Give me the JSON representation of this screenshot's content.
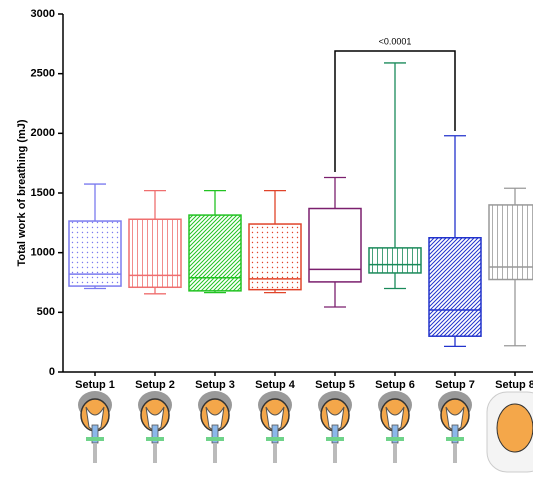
{
  "chart_data": {
    "type": "box",
    "y_label": "Total work of breathing (mJ)",
    "categories": [
      "Setup 1",
      "Setup 2",
      "Setup 3",
      "Setup 4",
      "Setup 5",
      "Setup 6",
      "Setup 7",
      "Setup 8"
    ],
    "min": [
      700,
      655,
      665,
      665,
      545,
      700,
      215,
      220
    ],
    "q1": [
      720,
      710,
      680,
      690,
      755,
      830,
      300,
      775
    ],
    "median": [
      820,
      810,
      790,
      780,
      860,
      900,
      520,
      880
    ],
    "q3": [
      1265,
      1280,
      1315,
      1240,
      1370,
      1040,
      1125,
      1400
    ],
    "max": [
      1575,
      1520,
      1520,
      1520,
      1630,
      2590,
      1980,
      1540
    ],
    "colors": [
      "#7b7bef",
      "#ef6f6f",
      "#22c322",
      "#e0442a",
      "#7b1f6e",
      "#1a8a5a",
      "#2233cc",
      "#999999"
    ],
    "fill_patterns": [
      "dots",
      "vlines",
      "diag",
      "dots",
      "none",
      "vlines",
      "diag",
      "vlines"
    ],
    "annotation": "<0.0001",
    "ylim": [
      0,
      3000
    ],
    "yticks": [
      0,
      500,
      1000,
      1500,
      2000,
      2500,
      3000
    ]
  }
}
